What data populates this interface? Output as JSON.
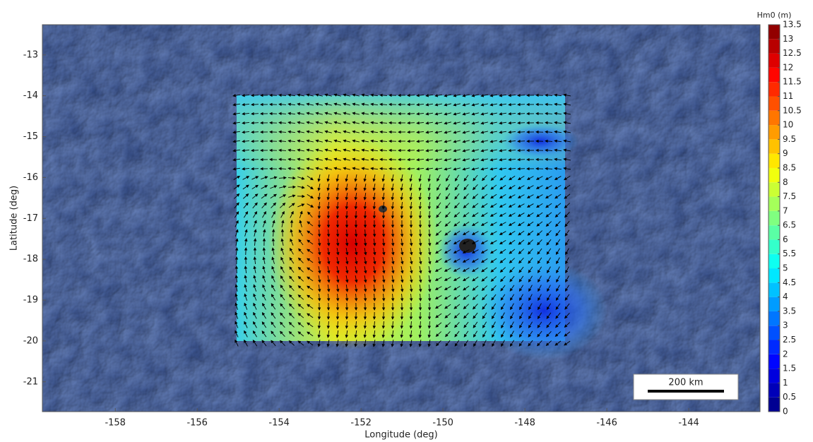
{
  "chart_data": {
    "type": "heatmap",
    "xlabel": "Longitude (deg)",
    "ylabel": "Latitude (deg)",
    "xlim": [
      -159.78,
      -142.26
    ],
    "ylim": [
      -21.73,
      -12.26
    ],
    "xticks": [
      -158,
      -156,
      -154,
      -152,
      -150,
      -148,
      -146,
      -144
    ],
    "yticks": [
      -13,
      -14,
      -15,
      -16,
      -17,
      -18,
      -19,
      -20,
      -21
    ],
    "colorbar": {
      "label": "Hm0 (m)",
      "colormap": "jet",
      "lim": [
        0,
        13.5
      ],
      "ticks": [
        0,
        0.5,
        1,
        1.5,
        2,
        2.5,
        3,
        3.5,
        4,
        4.5,
        5,
        5.5,
        6,
        6.5,
        7,
        7.5,
        8,
        8.5,
        9,
        9.5,
        10,
        10.5,
        11,
        11.5,
        12,
        12.5,
        13,
        13.5
      ]
    },
    "scale_bar": "200 km"
  }
}
